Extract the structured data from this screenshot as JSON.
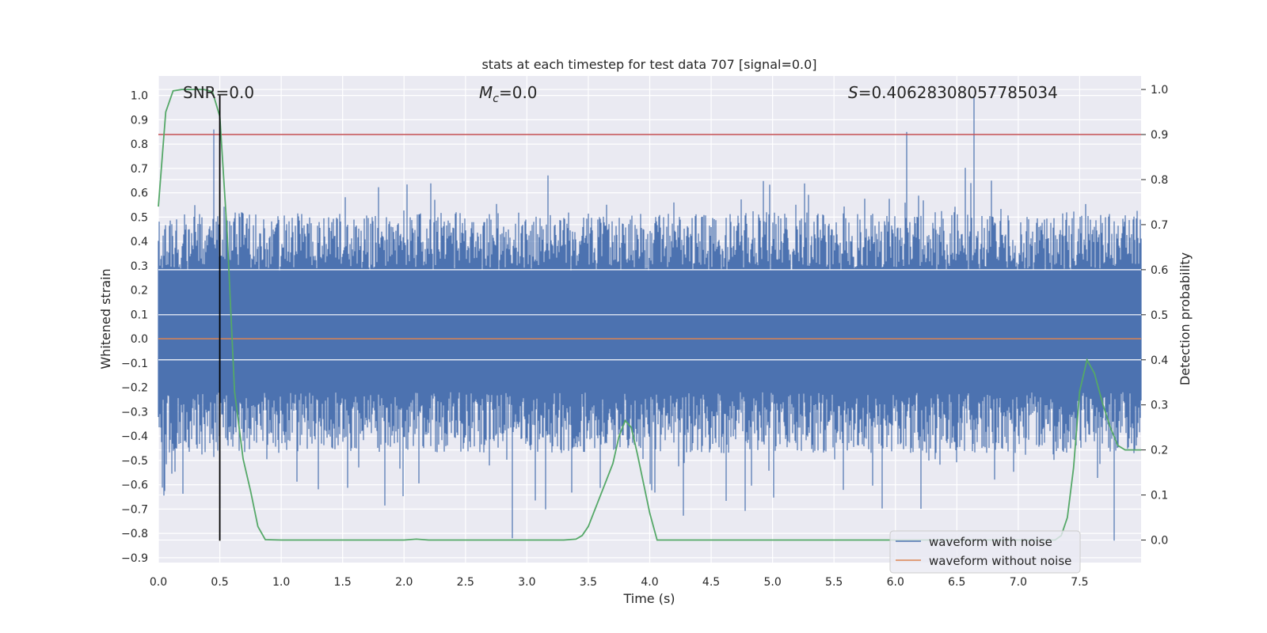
{
  "chart_data": {
    "type": "line",
    "title": "stats at each timestep for test data 707 [signal=0.0]",
    "xlabel": "Time (s)",
    "ylabel": "Whitened strain",
    "y2label": "Detection probability",
    "xlim": [
      0.0,
      8.0
    ],
    "ylim": [
      -0.92,
      1.08
    ],
    "y2lim": [
      -0.05,
      1.03
    ],
    "x_ticks": [
      "0.0",
      "0.5",
      "1.0",
      "1.5",
      "2.0",
      "2.5",
      "3.0",
      "3.5",
      "4.0",
      "4.5",
      "5.0",
      "5.5",
      "6.0",
      "6.5",
      "7.0",
      "7.5"
    ],
    "y_ticks": [
      "−0.9",
      "−0.8",
      "−0.7",
      "−0.6",
      "−0.5",
      "−0.4",
      "−0.3",
      "−0.2",
      "−0.1",
      "0.0",
      "0.1",
      "0.2",
      "0.3",
      "0.4",
      "0.5",
      "0.6",
      "0.7",
      "0.8",
      "0.9",
      "1.0"
    ],
    "y2_ticks": [
      "0.0",
      "0.1",
      "0.2",
      "0.3",
      "0.4",
      "0.5",
      "0.6",
      "0.7",
      "0.8",
      "0.9",
      "1.0"
    ],
    "grid": true,
    "legend_position": "lower-right",
    "annotations": {
      "snr": "SNR=0.0",
      "mc_symbol": "M",
      "mc_sub": "c",
      "mc_value": "=0.0",
      "s_symbol": "S",
      "s_value": "=0.40628308057785034"
    },
    "series": [
      {
        "name": "waveform with noise",
        "color": "#4c72b0",
        "axis": "left",
        "description_values": "dense noise between about -0.8 and 1.0",
        "peaks": [
          {
            "x": 0.45,
            "y": 0.86
          },
          {
            "x": 6.09,
            "y": 0.85
          },
          {
            "x": 6.64,
            "y": 1.0
          },
          {
            "x": 2.88,
            "y": -0.82
          },
          {
            "x": 7.78,
            "y": -0.83
          }
        ]
      },
      {
        "name": "waveform without noise",
        "color": "#dd8452",
        "axis": "left",
        "x": [
          0.0,
          8.0
        ],
        "values": [
          0.0,
          0.0
        ]
      },
      {
        "color": "#55a868",
        "axis": "right",
        "x": [
          0.0,
          0.06,
          0.12,
          0.19,
          0.25,
          0.31,
          0.37,
          0.44,
          0.5,
          0.56,
          0.62,
          0.69,
          0.75,
          0.81,
          0.87,
          1.0,
          1.5,
          2.0,
          2.1,
          2.2,
          3.0,
          3.3,
          3.4,
          3.45,
          3.5,
          3.6,
          3.7,
          3.75,
          3.8,
          3.85,
          3.9,
          4.0,
          4.06,
          4.12,
          4.5,
          5.0,
          6.0,
          6.5,
          7.0,
          7.2,
          7.3,
          7.35,
          7.4,
          7.45,
          7.5,
          7.56,
          7.62,
          7.69,
          7.75,
          7.81,
          7.87,
          7.94,
          8.0
        ],
        "values": [
          0.74,
          0.95,
          0.997,
          1.0,
          1.0,
          1.0,
          1.0,
          0.995,
          0.94,
          0.68,
          0.33,
          0.18,
          0.11,
          0.03,
          0.001,
          0.0,
          0.0,
          0.0,
          0.002,
          0.0,
          0.0,
          0.0,
          0.002,
          0.01,
          0.03,
          0.1,
          0.17,
          0.23,
          0.265,
          0.25,
          0.19,
          0.06,
          0.0,
          0.0,
          0.0,
          0.0,
          0.0,
          0.0,
          0.0,
          0.0,
          0.0,
          0.01,
          0.05,
          0.16,
          0.33,
          0.4,
          0.37,
          0.3,
          0.25,
          0.21,
          0.2,
          0.2,
          0.2
        ]
      },
      {
        "color": "#c44e52",
        "axis": "right",
        "x": [
          0.0,
          8.0
        ],
        "values": [
          0.9,
          0.9
        ]
      },
      {
        "color": "#000000",
        "axis": "left",
        "type": "vline",
        "x": 0.5,
        "y_range": [
          -0.83,
          1.0
        ]
      }
    ]
  }
}
